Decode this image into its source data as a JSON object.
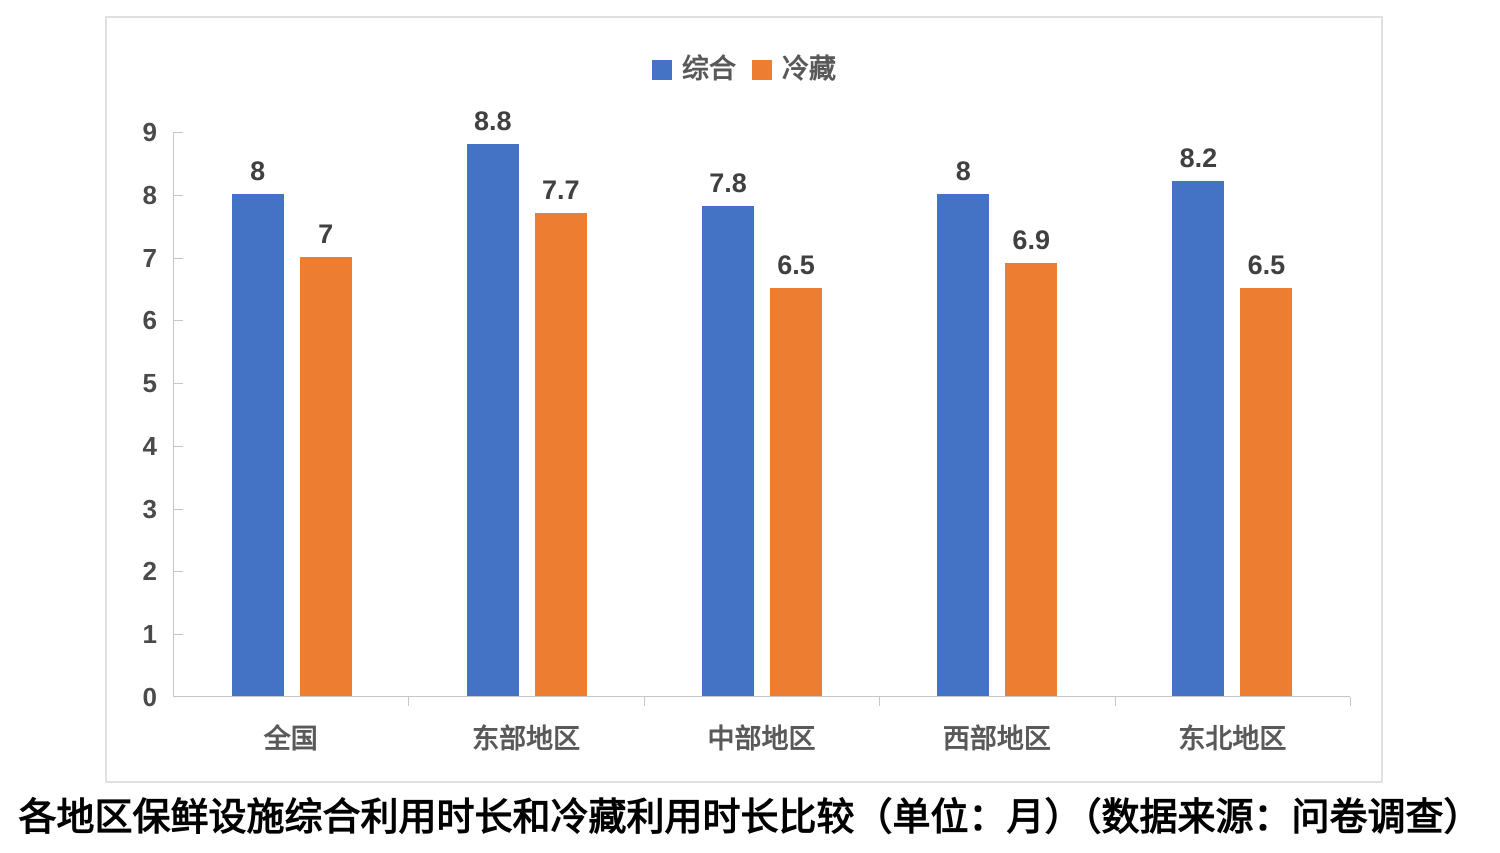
{
  "chart_data": {
    "type": "bar",
    "categories": [
      "全国",
      "东部地区",
      "中部地区",
      "西部地区",
      "东北地区"
    ],
    "series": [
      {
        "name": "综合",
        "color": "#4472C4",
        "values": [
          8,
          8.8,
          7.8,
          8,
          8.2
        ]
      },
      {
        "name": "冷藏",
        "color": "#ED7D31",
        "values": [
          7,
          7.7,
          6.5,
          6.9,
          6.5
        ]
      }
    ],
    "title": "各地区保鲜设施综合利用时长和冷藏利用时长比较（单位：月）（数据来源：问卷调查）",
    "xlabel": "",
    "ylabel": "",
    "ylim": [
      0,
      9
    ],
    "y_ticks": [
      "0",
      "1",
      "2",
      "3",
      "4",
      "5",
      "6",
      "7",
      "8",
      "9"
    ],
    "grid": false,
    "legend_position": "top-center",
    "data_labels_shown": true,
    "colors": {
      "axis_line": "#c6c6c6",
      "tick_label": "#4a4a4a",
      "data_label": "#404040",
      "legend_label": "#595959",
      "frame_border": "#e0e0e0",
      "background": "#ffffff"
    }
  }
}
